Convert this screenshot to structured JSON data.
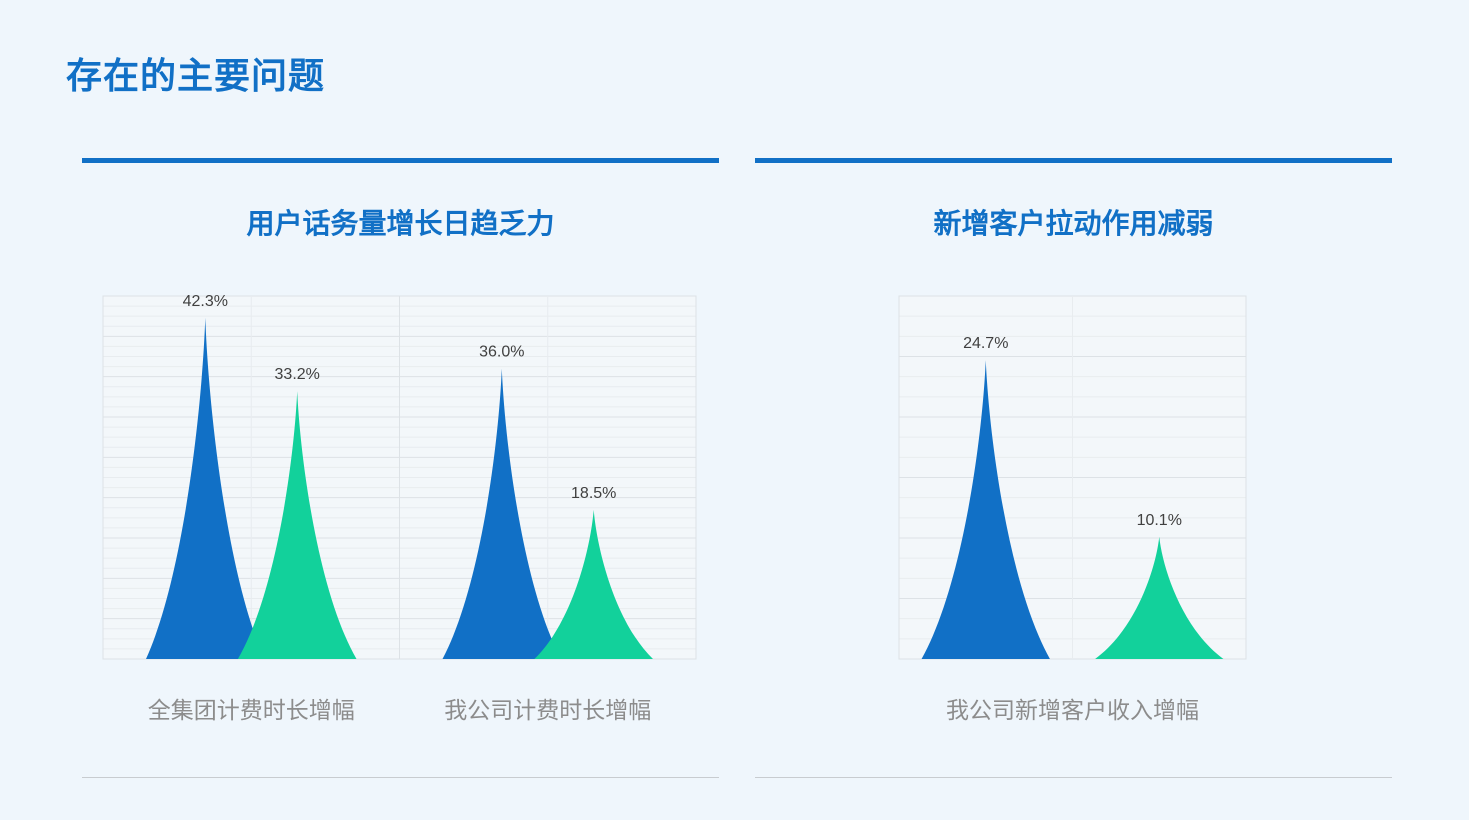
{
  "page": {
    "title": "存在的主要问题"
  },
  "colors": {
    "accent": "#1170c6",
    "series_blue": "#1170c6",
    "series_green": "#12d19b",
    "rule_gray": "#c8ccd0",
    "background": "#eff6fc"
  },
  "chart_data": [
    {
      "type": "bar",
      "bar_shape": "pointed-peak",
      "title": "用户话务量增长日趋乏力",
      "categories": [
        "全集团计费时长增幅",
        "我公司计费时长增幅"
      ],
      "series": [
        {
          "values": [
            42.3,
            36.0
          ],
          "labels": [
            "42.3%",
            "36.0%"
          ],
          "color": "#1170c6"
        },
        {
          "values": [
            33.2,
            18.5
          ],
          "labels": [
            "33.2%",
            "18.5%"
          ],
          "color": "#12d19b"
        }
      ],
      "ylim": [
        0,
        45
      ],
      "grid": true,
      "legend": "none"
    },
    {
      "type": "bar",
      "bar_shape": "pointed-peak",
      "title": "新增客户拉动作用减弱",
      "categories": [
        "我公司新增客户收入增幅"
      ],
      "series": [
        {
          "values": [
            24.7
          ],
          "labels": [
            "24.7%"
          ],
          "color": "#1170c6"
        },
        {
          "values": [
            10.1
          ],
          "labels": [
            "10.1%"
          ],
          "color": "#12d19b"
        }
      ],
      "ylim": [
        0,
        30
      ],
      "grid": true,
      "legend": "none"
    }
  ]
}
